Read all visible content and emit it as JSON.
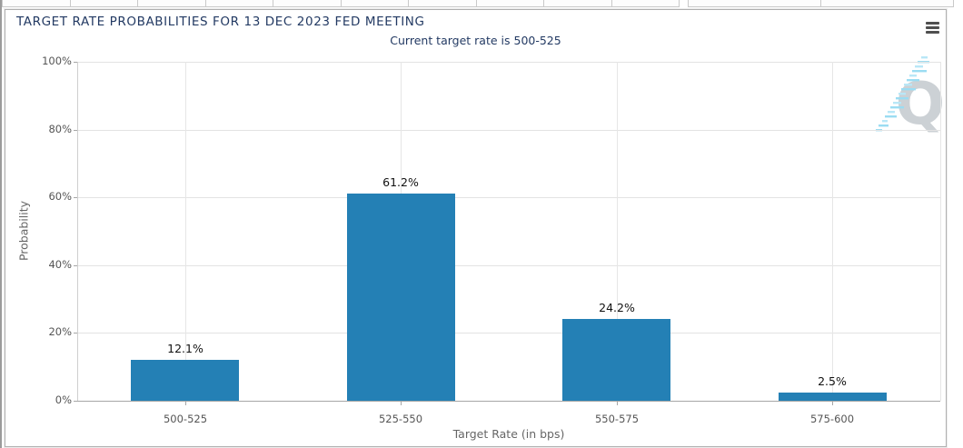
{
  "chart_data": {
    "type": "bar",
    "title": "TARGET RATE PROBABILITIES FOR 13 DEC 2023 FED MEETING",
    "subtitle": "Current target rate is 500-525",
    "categories": [
      "500-525",
      "525-550",
      "550-575",
      "575-600"
    ],
    "values": [
      12.1,
      61.2,
      24.2,
      2.5
    ],
    "value_labels": [
      "12.1%",
      "61.2%",
      "24.2%",
      "2.5%"
    ],
    "xlabel": "Target Rate (in bps)",
    "ylabel": "Probability",
    "ylim": [
      0,
      100
    ],
    "yticks": [
      "0%",
      "20%",
      "40%",
      "60%",
      "80%",
      "100%"
    ],
    "grid": true,
    "legend": "none",
    "bar_color": "#2480b5"
  },
  "watermark": {
    "letter": "Q"
  },
  "icons": {
    "menu": "hamburger-menu-icon",
    "watermark": "q-logo-watermark"
  },
  "colors": {
    "title_navy": "#233a63",
    "bar_blue": "#2480b5",
    "tick_label_gray": "#555555",
    "axis_title_gray": "#666666",
    "watermark_gray": "#ccd1d5",
    "watermark_blue": "#9bdcf2"
  }
}
